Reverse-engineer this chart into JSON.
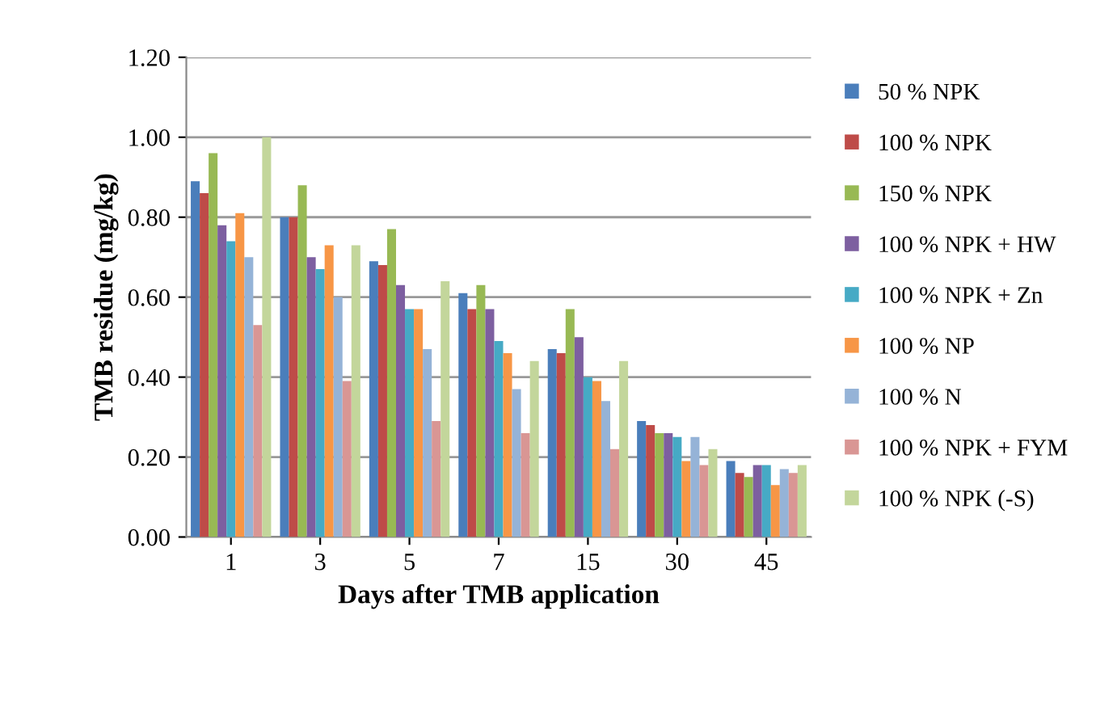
{
  "chart_data": {
    "type": "bar",
    "xlabel": "Days after TMB application",
    "ylabel": "TMB residue (mg/kg)",
    "categories": [
      "1",
      "3",
      "5",
      "7",
      "15",
      "30",
      "45"
    ],
    "ylim": [
      0,
      1.2
    ],
    "yticks": [
      {
        "value": 0,
        "label": "0.00"
      },
      {
        "value": 0.2,
        "label": "0.20"
      },
      {
        "value": 0.4,
        "label": "0.40"
      },
      {
        "value": 0.6,
        "label": "0.60"
      },
      {
        "value": 0.8,
        "label": "0.80"
      },
      {
        "value": 1.0,
        "label": "1.00"
      },
      {
        "value": 1.2,
        "label": "1.20"
      }
    ],
    "grid": "y",
    "legend": "right",
    "series": [
      {
        "name": "50 % NPK",
        "color": "#4a7ebb",
        "values": [
          0.89,
          0.8,
          0.69,
          0.61,
          0.47,
          0.29,
          0.19
        ]
      },
      {
        "name": "100 % NPK",
        "color": "#be4b48",
        "values": [
          0.86,
          0.8,
          0.68,
          0.57,
          0.46,
          0.28,
          0.16
        ]
      },
      {
        "name": "150 % NPK",
        "color": "#98b954",
        "values": [
          0.96,
          0.88,
          0.77,
          0.63,
          0.57,
          0.26,
          0.15
        ]
      },
      {
        "name": "100 % NPK + HW",
        "color": "#7d5fa0",
        "values": [
          0.78,
          0.7,
          0.63,
          0.57,
          0.5,
          0.26,
          0.18
        ]
      },
      {
        "name": "100 % NPK + Zn",
        "color": "#46aac5",
        "values": [
          0.74,
          0.67,
          0.57,
          0.49,
          0.4,
          0.25,
          0.18
        ]
      },
      {
        "name": "100 % NP",
        "color": "#f79646",
        "values": [
          0.81,
          0.73,
          0.57,
          0.46,
          0.39,
          0.19,
          0.13
        ]
      },
      {
        "name": "100 % N",
        "color": "#95b3d7",
        "values": [
          0.7,
          0.6,
          0.47,
          0.37,
          0.34,
          0.25,
          0.17
        ]
      },
      {
        "name": "100 % NPK + FYM",
        "color": "#d99694",
        "values": [
          0.53,
          0.39,
          0.29,
          0.26,
          0.22,
          0.18,
          0.16
        ]
      },
      {
        "name": "100 % NPK (-S)",
        "color": "#c3d69b",
        "values": [
          1.0,
          0.73,
          0.64,
          0.44,
          0.44,
          0.22,
          0.18
        ]
      }
    ]
  }
}
